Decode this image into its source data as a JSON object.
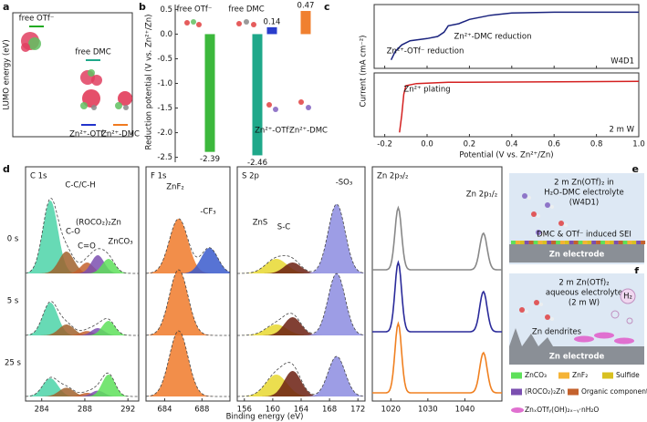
{
  "a": {
    "label": "a",
    "ylabel": "LUMO energy (eV)",
    "levels": [
      {
        "name": "free OTf⁻",
        "color": "#22aa22"
      },
      {
        "name": "free DMC",
        "color": "#1fa88a"
      },
      {
        "name": "Zn²⁺-OTf⁻",
        "color": "#2233cc"
      },
      {
        "name": "Zn²⁺-DMC",
        "color": "#f07a20"
      }
    ]
  },
  "b": {
    "label": "b",
    "ylabel": "Reduction potential (V vs. Zn²⁺/Zn)",
    "categories": [
      "free OTf⁻",
      "free DMC",
      "Zn²⁺-OTf⁻",
      "Zn²⁺-DMC"
    ],
    "values": [
      -2.39,
      -2.46,
      0.14,
      0.47
    ],
    "colors": [
      "#3cb83c",
      "#1fa88a",
      "#2a3dcc",
      "#f08030"
    ],
    "ylim": [
      -2.6,
      0.6
    ],
    "yticks": [
      -2.5,
      {
        "value": -2,
        "label": "-2.0"
      },
      -1.5,
      {
        "value": -1,
        "label": "-1.0"
      },
      -0.5,
      {
        "value": 0,
        "label": "0.0"
      },
      0.5
    ]
  },
  "c": {
    "label": "c",
    "xlabel": "Potential (V vs. Zn²⁺/Zn)",
    "ylabel": "Current (mA cm⁻²)",
    "xlim": [
      -0.25,
      1.0
    ],
    "xticks": [
      -0.2,
      {
        "value": 0,
        "label": "0.0"
      },
      0.2,
      0.4,
      0.6,
      0.8,
      {
        "value": 1,
        "label": "1.0"
      }
    ],
    "plots": [
      {
        "x": [
          -0.17,
          -0.15,
          -0.12,
          -0.08,
          0,
          0.05,
          0.08,
          0.1,
          0.15,
          0.2,
          0.3,
          0.4,
          0.6,
          1.0
        ],
        "y": [
          -1.1,
          -0.9,
          -0.75,
          -0.65,
          -0.6,
          -0.55,
          -0.45,
          -0.3,
          -0.25,
          -0.15,
          -0.05,
          0,
          0.02,
          0.02
        ],
        "ylim": [
          -1.3,
          0.2
        ],
        "color": "#1a237e",
        "tag": "W4D1",
        "annotations": [
          "Zn²⁺-DMC reduction",
          "Zn²⁺-OTf⁻ reduction"
        ]
      },
      {
        "x": [
          -0.13,
          -0.12,
          -0.11,
          -0.1,
          -0.05,
          0.1,
          1.0
        ],
        "y": [
          -1.2,
          -0.8,
          -0.3,
          -0.1,
          -0.05,
          -0.02,
          0
        ],
        "ylim": [
          -1.3,
          0.2
        ],
        "color": "#d42020",
        "tag": "2 m W",
        "annotations": [
          "Zn²⁺ plating"
        ]
      }
    ]
  },
  "d": {
    "label": "d",
    "xlabel": "Binding energy (eV)",
    "rows": [
      "0 s",
      "5 s",
      "25 s"
    ],
    "panels": [
      {
        "title": "C 1s",
        "xlim": [
          282.5,
          293
        ],
        "xticks": [
          284,
          288,
          292
        ],
        "components": [
          {
            "label": "C-C/C-H",
            "center": 284.8,
            "width": 0.7,
            "color": "#4cd4a8",
            "heights": [
              1.0,
              0.45,
              0.25
            ]
          },
          {
            "label": "C-O",
            "center": 286.3,
            "width": 0.7,
            "color": "#a0622d",
            "heights": [
              0.3,
              0.15,
              0.12
            ]
          },
          {
            "label": "C=O",
            "center": 288.2,
            "width": 0.6,
            "color": "#c4622d",
            "heights": [
              0.15,
              0.06,
              0.05
            ]
          },
          {
            "label": "(ROCO₂)₂Zn",
            "center": 289.2,
            "width": 0.6,
            "color": "#7b4fb0",
            "heights": [
              0.25,
              0.1,
              0.08
            ]
          },
          {
            "label": "ZnCO₃",
            "center": 290.2,
            "width": 0.6,
            "color": "#5ee05a",
            "heights": [
              0.2,
              0.2,
              0.3
            ]
          }
        ]
      },
      {
        "title": "F 1s",
        "xlim": [
          682,
          691
        ],
        "xticks": [
          684,
          688
        ],
        "components": [
          {
            "label": "ZnF₂",
            "center": 685.5,
            "width": 1.0,
            "color": "#f07a2a",
            "heights": [
              0.75,
              0.9,
              0.9
            ]
          },
          {
            "label": "-CF₃",
            "center": 688.8,
            "width": 0.9,
            "color": "#3a5acc",
            "heights": [
              0.35,
              0,
              0
            ]
          }
        ]
      },
      {
        "title": "S 2p",
        "xlim": [
          155,
          173
        ],
        "xticks": [
          156,
          160,
          164,
          168,
          172
        ],
        "components": [
          {
            "label": "ZnS",
            "center": 160.5,
            "width": 1.5,
            "color": "#e8d830",
            "heights": [
              0.2,
              0.15,
              0.3
            ]
          },
          {
            "label": "S-C",
            "center": 162.8,
            "width": 1.2,
            "color": "#6b1e10",
            "heights": [
              0.15,
              0.25,
              0.35
            ]
          },
          {
            "label": "-SO₃",
            "center": 169,
            "width": 1.2,
            "color": "#8c8ce0",
            "heights": [
              0.95,
              0.85,
              0.55
            ]
          }
        ]
      },
      {
        "title": "Zn 2p₃/₂",
        "xlim": [
          1015,
          1050
        ],
        "xticks": [
          1020,
          1030,
          1040
        ],
        "peaks": [
          {
            "center": 1022,
            "width": 0.9
          },
          {
            "center": 1045,
            "width": 1.0,
            "label": "Zn 2p₁/₂"
          }
        ],
        "series": [
          {
            "color": "#888888",
            "heights": [
              0.85,
              0.5
            ]
          },
          {
            "color": "#2a2a9a",
            "heights": [
              0.95,
              0.55
            ]
          },
          {
            "color": "#f08020",
            "heights": [
              0.95,
              0.55
            ]
          }
        ]
      }
    ]
  },
  "e": {
    "label": "e",
    "lines": [
      "2 m Zn(OTf)₂ in",
      "H₂O-DMC electrolyte",
      "(W4D1)"
    ],
    "sei": "DMC & OTf⁻ induced SEI",
    "electrode": "Zn electrode"
  },
  "f": {
    "label": "f",
    "lines": [
      "2 m Zn(OTf)₂",
      "aqueous electrolyte",
      "(2 m W)"
    ],
    "gas": "H₂",
    "dendrites": "Zn dendrites",
    "electrode": "Zn electrode"
  },
  "legend": [
    {
      "label": "ZnCO₃",
      "color": "#5ee05a"
    },
    {
      "label": "ZnF₂",
      "color": "#f5b335"
    },
    {
      "label": "Sulfide",
      "color": "#d8c020"
    },
    {
      "label": "(ROCO₂)₂Zn",
      "color": "#7b4fb0"
    },
    {
      "label": "Organic components",
      "color": "#c4622d"
    },
    {
      "label": "ZnₓOTfᵧ(OH)₂ₓ₋ᵧ·nH₂O",
      "color": "#e070d0"
    }
  ]
}
